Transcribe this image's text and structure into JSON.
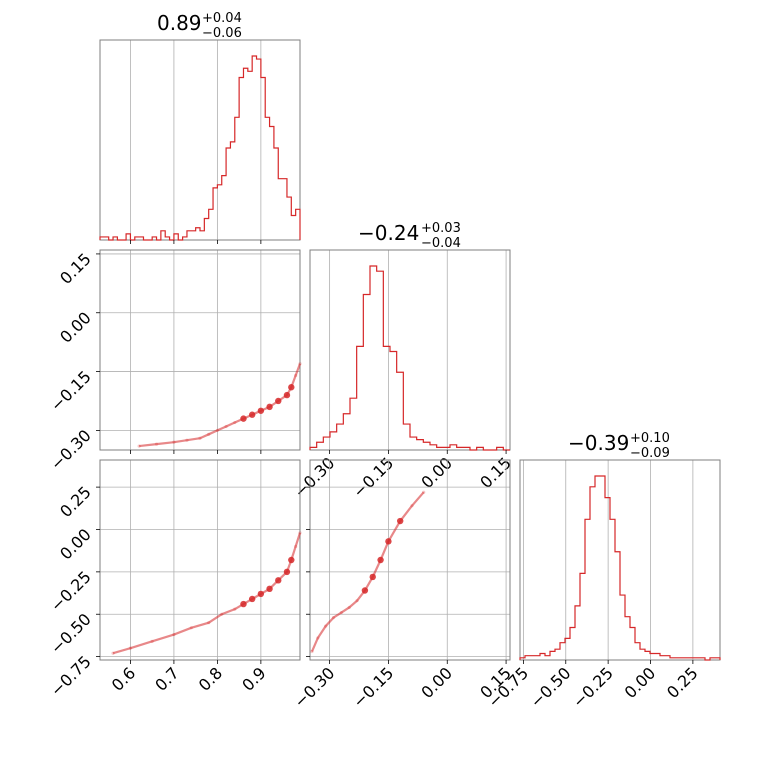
{
  "colors": {
    "accent": "#d62728",
    "grid": "#b0b0b0",
    "frame": "#7f7f7f"
  },
  "chart_data": [
    {
      "type": "corner",
      "parameters": [
        {
          "median": "0.89",
          "plus": "+0.04",
          "minus": "−0.06",
          "range": [
            0.53,
            0.99
          ],
          "ticks": [
            0.6,
            0.7,
            0.8,
            0.9
          ],
          "tick_labels": [
            "0.6",
            "0.7",
            "0.8",
            "0.9"
          ]
        },
        {
          "median": "−0.24",
          "plus": "+0.03",
          "minus": "−0.04",
          "range": [
            -0.35,
            0.16
          ],
          "ticks": [
            0.15,
            0.0,
            -0.15,
            -0.3
          ],
          "tick_labels": [
            "0.15",
            "0.00",
            "−0.15",
            "−0.30"
          ]
        },
        {
          "median": "−0.39",
          "plus": "+0.10",
          "minus": "−0.09",
          "range": [
            -0.77,
            0.41
          ],
          "ticks": [
            0.25,
            0.0,
            -0.25,
            -0.5,
            -0.75
          ],
          "tick_labels": [
            "0.25",
            "0.00",
            "−0.25",
            "−0.50",
            "−0.75"
          ]
        }
      ],
      "histograms": [
        {
          "type": "histogram",
          "param": 0,
          "counts": [
            1,
            1,
            0,
            1,
            0,
            0,
            2,
            0,
            1,
            1,
            0,
            0,
            1,
            0,
            3,
            1,
            0,
            2,
            0,
            1,
            3,
            3,
            4,
            3,
            7,
            10,
            17,
            18,
            21,
            30,
            32,
            40,
            53,
            56,
            55,
            60,
            59,
            53,
            40,
            37,
            30,
            20,
            20,
            14,
            8,
            10
          ]
        },
        {
          "type": "histogram",
          "param": 1,
          "counts": [
            1,
            3,
            5,
            7,
            10,
            14,
            20,
            40,
            60,
            71,
            69,
            40,
            38,
            30,
            10,
            5,
            4,
            3,
            2,
            1,
            1,
            2,
            1,
            1,
            0,
            1,
            0,
            0,
            1,
            0
          ]
        },
        {
          "type": "histogram",
          "param": 2,
          "counts": [
            1,
            2,
            2,
            2,
            3,
            2,
            4,
            5,
            8,
            10,
            15,
            25,
            40,
            65,
            80,
            85,
            85,
            75,
            65,
            50,
            30,
            20,
            15,
            8,
            5,
            4,
            3,
            3,
            2,
            2,
            1,
            1,
            1,
            1,
            1,
            1,
            1,
            0,
            1,
            1
          ]
        }
      ],
      "scatter_trend": [
        {
          "type": "scatter",
          "x_param": 0,
          "y_param": 1,
          "x": [
            0.62,
            0.66,
            0.7,
            0.73,
            0.76,
            0.78,
            0.8,
            0.82,
            0.84,
            0.86,
            0.88,
            0.9,
            0.92,
            0.94,
            0.96,
            0.97,
            0.98,
            0.99
          ],
          "y": [
            -0.34,
            -0.335,
            -0.33,
            -0.325,
            -0.32,
            -0.31,
            -0.3,
            -0.29,
            -0.28,
            -0.27,
            -0.26,
            -0.25,
            -0.24,
            -0.225,
            -0.21,
            -0.19,
            -0.16,
            -0.13
          ]
        },
        {
          "type": "scatter",
          "x_param": 0,
          "y_param": 2,
          "x": [
            0.56,
            0.6,
            0.65,
            0.7,
            0.74,
            0.78,
            0.81,
            0.84,
            0.86,
            0.88,
            0.9,
            0.92,
            0.94,
            0.96,
            0.97,
            0.98,
            0.99
          ],
          "y": [
            -0.73,
            -0.7,
            -0.66,
            -0.62,
            -0.58,
            -0.55,
            -0.5,
            -0.47,
            -0.44,
            -0.41,
            -0.38,
            -0.35,
            -0.3,
            -0.25,
            -0.18,
            -0.1,
            -0.02
          ]
        },
        {
          "type": "scatter",
          "x_param": 1,
          "y_param": 2,
          "x": [
            -0.345,
            -0.33,
            -0.31,
            -0.29,
            -0.27,
            -0.25,
            -0.23,
            -0.21,
            -0.19,
            -0.17,
            -0.15,
            -0.12,
            -0.09,
            -0.06
          ],
          "y": [
            -0.72,
            -0.64,
            -0.57,
            -0.52,
            -0.49,
            -0.46,
            -0.42,
            -0.36,
            -0.28,
            -0.18,
            -0.07,
            0.05,
            0.14,
            0.22
          ]
        }
      ]
    }
  ]
}
